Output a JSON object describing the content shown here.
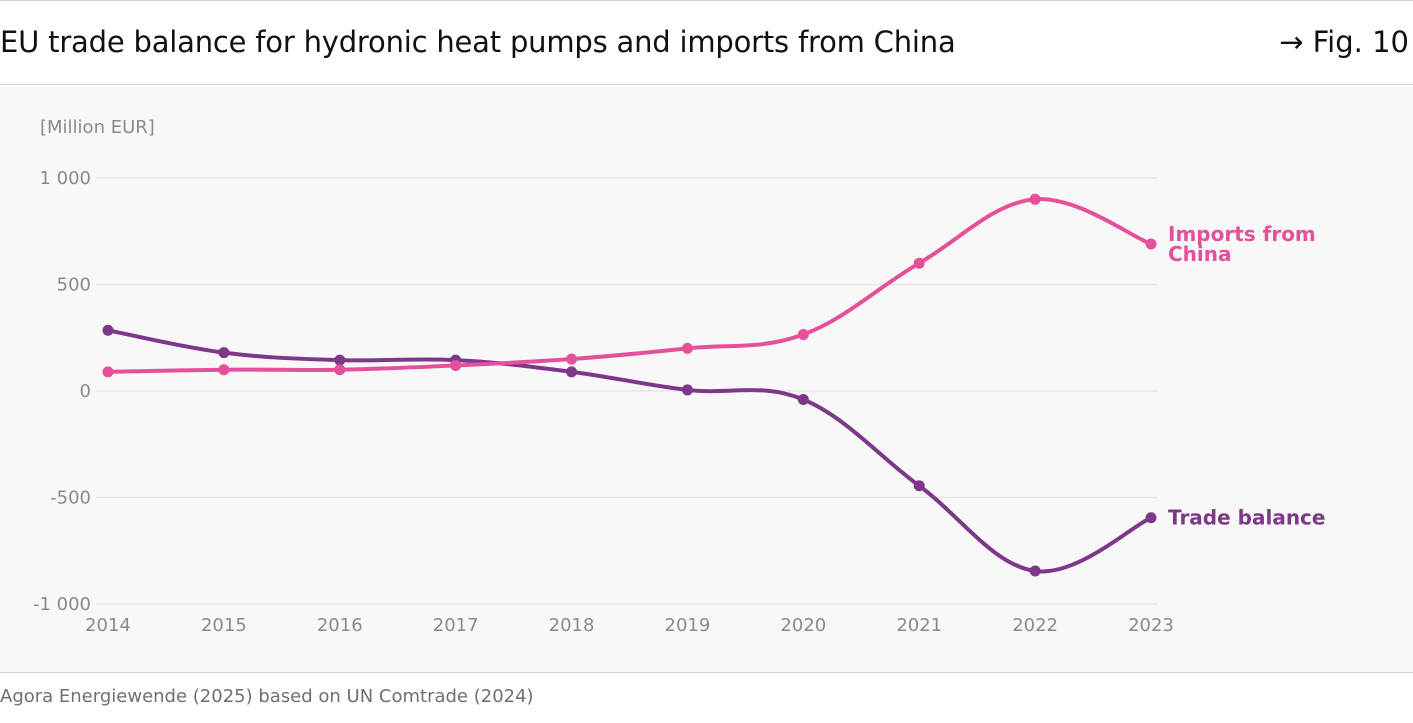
{
  "header": {
    "title": "EU trade balance for hydronic heat pumps and imports from China",
    "figure_ref": "→ Fig. 10"
  },
  "footer": {
    "source": "Agora Energiewende (2025) based on UN Comtrade (2024)"
  },
  "chart_data": {
    "type": "line",
    "title": "EU trade balance for hydronic heat pumps and imports from China",
    "ylabel": "[Million EUR]",
    "xlabel": "",
    "x": [
      "2014",
      "2015",
      "2016",
      "2017",
      "2018",
      "2019",
      "2020",
      "2021",
      "2022",
      "2023"
    ],
    "ylim": [
      -1000,
      1000
    ],
    "yticks": [
      1000,
      500,
      0,
      -500,
      -1000
    ],
    "ytick_labels": [
      "1 000",
      "500",
      "0",
      "-500",
      "-1 000"
    ],
    "grid": true,
    "legend": "direct labels at line ends (right)",
    "series": [
      {
        "name": "Imports from China",
        "name_lines": [
          "Imports from",
          "China"
        ],
        "color": "#e4509a",
        "values": [
          90,
          100,
          100,
          120,
          150,
          200,
          265,
          600,
          900,
          690
        ]
      },
      {
        "name": "Trade balance",
        "name_lines": [
          "Trade balance"
        ],
        "color": "#7d3889",
        "values": [
          285,
          180,
          145,
          145,
          90,
          5,
          -40,
          -445,
          -845,
          -595
        ]
      }
    ]
  }
}
